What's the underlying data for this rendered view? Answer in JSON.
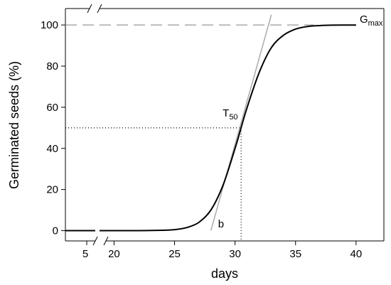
{
  "chart_data": {
    "type": "line",
    "title": "",
    "xlabel": "days",
    "ylabel": "Germinated seeds (%)",
    "x_axis_break": true,
    "x_ticks_before_break": [
      5
    ],
    "x_ticks_after_break": [
      20,
      25,
      30,
      35,
      40
    ],
    "x_range_after_break": [
      18.8,
      42.3
    ],
    "ylim": [
      -5,
      108
    ],
    "y_ticks": [
      0,
      20,
      40,
      60,
      80,
      100
    ],
    "grid": false,
    "series": [
      {
        "kind": "logistic-curve",
        "x": [
          18.8,
          20,
          22,
          24,
          25,
          26,
          27,
          28,
          29,
          30,
          30.5,
          31,
          32,
          33,
          34,
          35,
          36,
          37,
          38,
          40
        ],
        "y": [
          0,
          0,
          0,
          0.2,
          0.5,
          1.5,
          4,
          10,
          22,
          40,
          50,
          60,
          77,
          89,
          95,
          98,
          99.3,
          99.7,
          99.9,
          100
        ]
      }
    ],
    "annotations": {
      "gmax": {
        "text": "G",
        "sub": "max",
        "value": 100
      },
      "t50": {
        "text": "T",
        "sub": "50",
        "x": 30.5,
        "y": 50
      },
      "slope": {
        "text": "b",
        "from": [
          28,
          0
        ],
        "to": [
          33,
          105
        ]
      }
    }
  }
}
